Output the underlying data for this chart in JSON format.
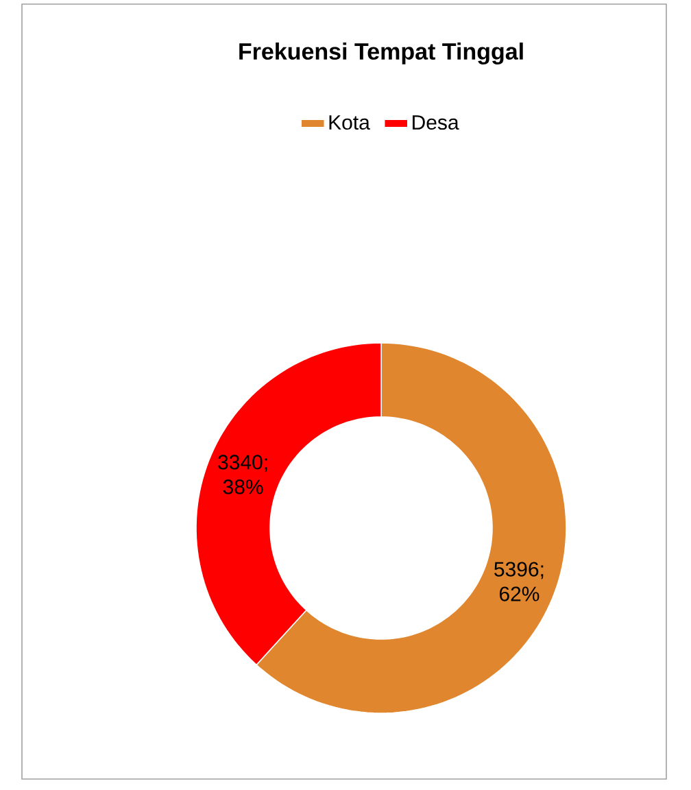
{
  "chart_data": {
    "type": "donut",
    "title": "Frekuensi Tempat Tinggal",
    "categories": [
      "Kota",
      "Desa"
    ],
    "values": [
      5396,
      3340
    ],
    "colors": [
      "#e0862f",
      "#ff0000"
    ],
    "value_labels": [
      "5396; 62%",
      "3340; 38%"
    ],
    "legend": "top"
  }
}
